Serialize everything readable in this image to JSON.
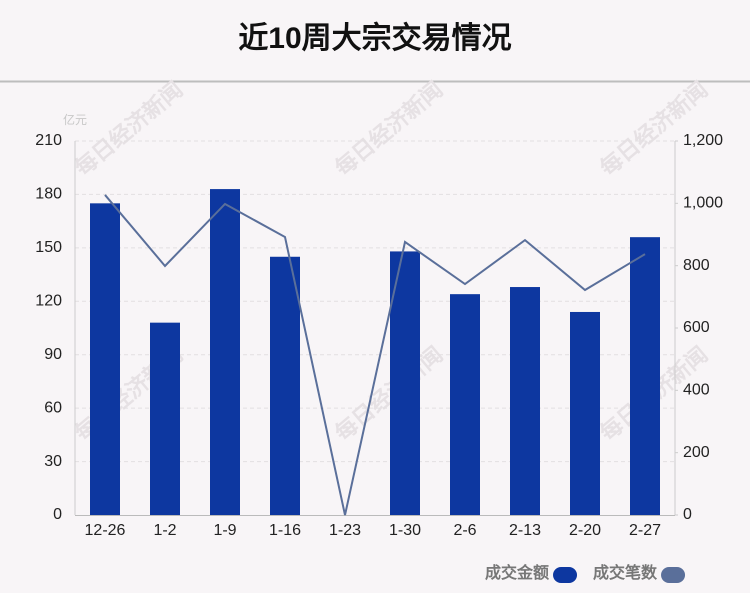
{
  "chart_data": {
    "type": "bar",
    "title": "近10周大宗交易情况",
    "y_unit": "亿元",
    "watermark": "每日经济新闻",
    "categories": [
      "12-26",
      "1-2",
      "1-9",
      "1-16",
      "1-23",
      "1-30",
      "2-6",
      "2-13",
      "2-20",
      "2-27"
    ],
    "series": [
      {
        "name": "成交金额",
        "type": "bar",
        "axis": "y",
        "color": "#0d37a0",
        "values": [
          175,
          108,
          183,
          145,
          0,
          148,
          124,
          128,
          114,
          156
        ]
      },
      {
        "name": "成交笔数",
        "type": "line",
        "axis": "y2",
        "color": "#5a6f9a",
        "values": [
          1027,
          799,
          998,
          892,
          0,
          876,
          741,
          882,
          722,
          837
        ]
      }
    ],
    "ylim": [
      0,
      210
    ],
    "yticks": [
      0,
      30,
      60,
      90,
      120,
      150,
      180,
      210
    ],
    "y2lim": [
      0,
      1200
    ],
    "y2ticks": [
      0,
      200,
      400,
      600,
      800,
      {
        "value": 1000,
        "label": "1,000"
      },
      {
        "value": 1200,
        "label": "1,200"
      }
    ],
    "grid": true,
    "legend": "bottom-right"
  }
}
